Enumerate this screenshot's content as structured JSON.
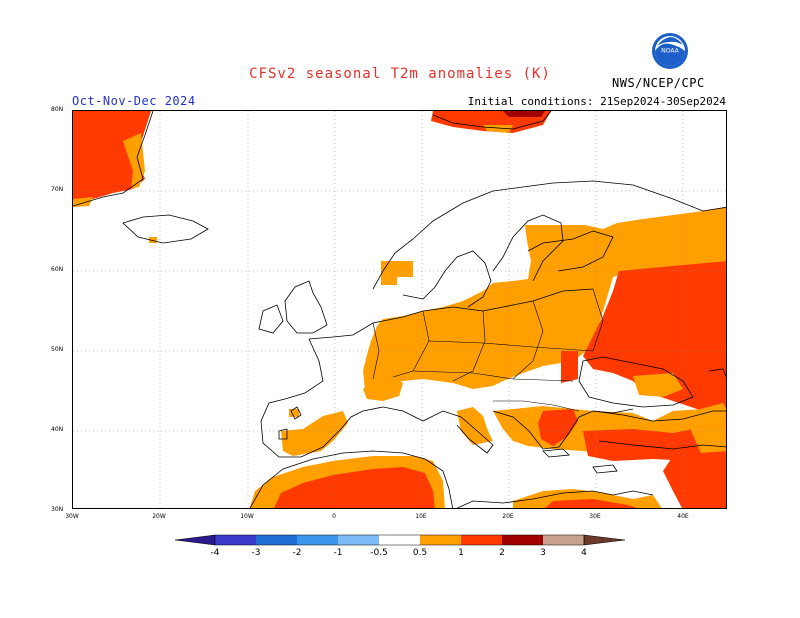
{
  "header": {
    "title": "CFSv2 seasonal T2m anomalies (K)",
    "period": "Oct-Nov-Dec 2024",
    "initial_conditions": "Initial conditions: 21Sep2024-30Sep2024",
    "agency": "NWS/NCEP/CPC",
    "logo_text": "NOAA"
  },
  "map": {
    "lat_labels": [
      "80N",
      "70N",
      "60N",
      "50N",
      "40N",
      "30N"
    ],
    "lon_labels": [
      "30W",
      "20W",
      "10W",
      "0",
      "10E",
      "20E",
      "30E",
      "40E"
    ]
  },
  "colorbar": {
    "tick_labels": [
      "-4",
      "-3",
      "-2",
      "-1",
      "-0.5",
      "0.5",
      "1",
      "2",
      "3",
      "4"
    ],
    "colors": {
      "lt_m4": "#2a1a8c",
      "m4_m3": "#3a3acb",
      "m3_m2": "#1f6fd6",
      "m2_m1": "#3d95ee",
      "m1_m05": "#7cbcf6",
      "neutral": "#ffffff",
      "p05_1": "#ff9f00",
      "p1_2": "#ff3a00",
      "p2_3": "#a00000",
      "p3_4": "#c8a090",
      "gt_4": "#6b3a2a"
    }
  }
}
